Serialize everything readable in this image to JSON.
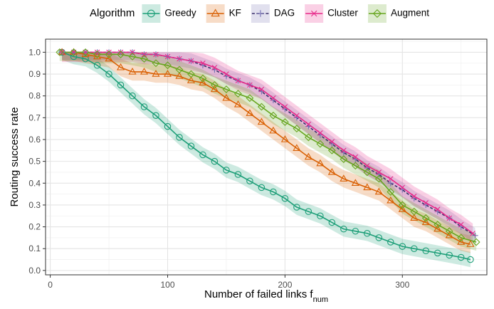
{
  "chart_data": {
    "type": "line",
    "title": "",
    "xlabel": "Number of failed links",
    "xlabel_sub": "num",
    "xlabel_var": "f",
    "ylabel": "Routing success rate",
    "xlim": [
      -4,
      372
    ],
    "ylim": [
      -0.02,
      1.06
    ],
    "x_ticks": [
      0,
      100,
      200,
      300
    ],
    "y_ticks": [
      0.0,
      0.1,
      0.2,
      0.3,
      0.4,
      0.5,
      0.6,
      0.7,
      0.8,
      0.9,
      1.0
    ],
    "y_tick_labels": [
      "0.0",
      "0.1",
      "0.2",
      "0.3",
      "0.4",
      "0.5",
      "0.6",
      "0.7",
      "0.8",
      "0.9",
      "1.0"
    ],
    "grid": true,
    "legend": {
      "title": "Algorithm",
      "position": "top"
    },
    "series": [
      {
        "name": "Greedy",
        "color": "#1b9e77",
        "marker": "circle",
        "line": "solid",
        "band": 0.035,
        "x": [
          10,
          20,
          30,
          40,
          50,
          60,
          70,
          80,
          90,
          100,
          110,
          120,
          130,
          140,
          150,
          160,
          170,
          180,
          190,
          200,
          210,
          220,
          230,
          240,
          250,
          260,
          270,
          280,
          290,
          300,
          310,
          320,
          330,
          340,
          350,
          358
        ],
        "y": [
          1.0,
          0.98,
          0.97,
          0.94,
          0.9,
          0.85,
          0.8,
          0.75,
          0.71,
          0.66,
          0.61,
          0.57,
          0.53,
          0.5,
          0.46,
          0.44,
          0.41,
          0.38,
          0.36,
          0.33,
          0.29,
          0.27,
          0.25,
          0.22,
          0.19,
          0.18,
          0.17,
          0.15,
          0.13,
          0.11,
          0.1,
          0.09,
          0.08,
          0.07,
          0.06,
          0.05
        ]
      },
      {
        "name": "KF",
        "color": "#d95f02",
        "marker": "triangle",
        "line": "solid",
        "band": 0.04,
        "x": [
          10,
          20,
          30,
          40,
          50,
          60,
          70,
          80,
          90,
          100,
          110,
          120,
          130,
          140,
          150,
          160,
          170,
          180,
          190,
          200,
          210,
          220,
          230,
          240,
          250,
          260,
          270,
          280,
          290,
          300,
          310,
          320,
          330,
          340,
          350,
          358
        ],
        "y": [
          1.0,
          1.0,
          0.99,
          0.98,
          0.97,
          0.93,
          0.91,
          0.91,
          0.9,
          0.9,
          0.89,
          0.87,
          0.86,
          0.83,
          0.79,
          0.76,
          0.72,
          0.68,
          0.64,
          0.6,
          0.56,
          0.52,
          0.49,
          0.45,
          0.42,
          0.4,
          0.38,
          0.36,
          0.32,
          0.28,
          0.24,
          0.22,
          0.19,
          0.16,
          0.13,
          0.12
        ]
      },
      {
        "name": "DAG",
        "color": "#7570b3",
        "marker": "plus",
        "line": "dashed",
        "band": 0.035,
        "x": [
          10,
          20,
          30,
          40,
          50,
          60,
          70,
          80,
          90,
          100,
          110,
          120,
          130,
          140,
          150,
          160,
          170,
          180,
          190,
          200,
          210,
          220,
          230,
          240,
          250,
          260,
          270,
          280,
          290,
          300,
          310,
          320,
          330,
          340,
          350,
          362
        ],
        "y": [
          1.0,
          1.0,
          1.0,
          1.0,
          1.0,
          1.0,
          1.0,
          0.99,
          0.99,
          0.98,
          0.97,
          0.96,
          0.94,
          0.92,
          0.89,
          0.87,
          0.85,
          0.82,
          0.78,
          0.74,
          0.7,
          0.66,
          0.62,
          0.58,
          0.54,
          0.51,
          0.47,
          0.44,
          0.4,
          0.37,
          0.33,
          0.3,
          0.27,
          0.24,
          0.2,
          0.16
        ]
      },
      {
        "name": "Cluster",
        "color": "#e7298a",
        "marker": "cross",
        "line": "solid",
        "band": 0.045,
        "x": [
          10,
          20,
          30,
          40,
          50,
          60,
          70,
          80,
          90,
          100,
          110,
          120,
          130,
          140,
          150,
          160,
          170,
          180,
          190,
          200,
          210,
          220,
          230,
          240,
          250,
          260,
          270,
          280,
          290,
          300,
          310,
          320,
          330,
          340,
          350,
          360
        ],
        "y": [
          1.0,
          1.0,
          1.0,
          1.0,
          1.0,
          1.0,
          1.0,
          0.99,
          0.99,
          0.98,
          0.97,
          0.96,
          0.95,
          0.93,
          0.9,
          0.87,
          0.85,
          0.83,
          0.79,
          0.75,
          0.71,
          0.67,
          0.63,
          0.59,
          0.55,
          0.52,
          0.48,
          0.45,
          0.42,
          0.38,
          0.34,
          0.31,
          0.28,
          0.24,
          0.21,
          0.17
        ]
      },
      {
        "name": "Augment",
        "color": "#66a61e",
        "marker": "diamond",
        "line": "solid",
        "band": 0.04,
        "x": [
          8,
          20,
          30,
          40,
          50,
          60,
          70,
          80,
          90,
          100,
          110,
          120,
          130,
          140,
          150,
          160,
          170,
          180,
          190,
          200,
          210,
          220,
          230,
          240,
          250,
          260,
          270,
          280,
          290,
          300,
          310,
          320,
          330,
          340,
          350,
          363
        ],
        "y": [
          1.0,
          1.0,
          1.0,
          0.99,
          0.99,
          0.99,
          0.98,
          0.97,
          0.95,
          0.94,
          0.92,
          0.9,
          0.88,
          0.85,
          0.83,
          0.81,
          0.79,
          0.75,
          0.71,
          0.68,
          0.65,
          0.61,
          0.58,
          0.55,
          0.51,
          0.48,
          0.45,
          0.42,
          0.36,
          0.3,
          0.27,
          0.24,
          0.21,
          0.18,
          0.15,
          0.13
        ]
      }
    ]
  }
}
